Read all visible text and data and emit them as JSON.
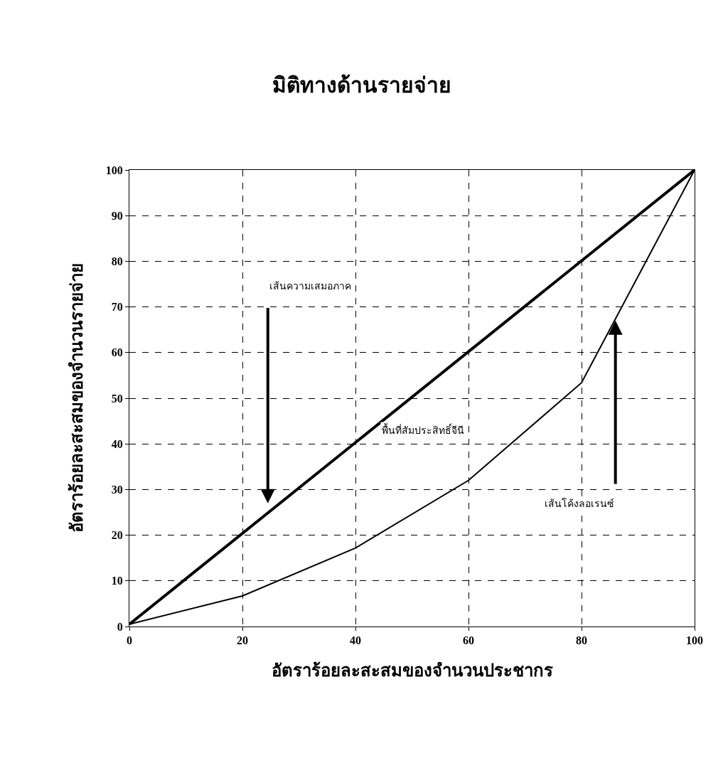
{
  "chart_data": {
    "type": "line",
    "title": "มิติทางด้านรายจ่าย",
    "xlabel": "อัตราร้อยละสะสมของจำนวนประชากร",
    "ylabel": "อัตราร้อยละสะสมของจำนวนรายจ่าย",
    "series": [
      {
        "color": "#000000",
        "x": [
          0,
          100
        ],
        "values": [
          0.5,
          100
        ]
      },
      {
        "color": "#000000",
        "x": [
          0,
          20,
          40,
          60,
          80,
          100
        ],
        "values": [
          0.5,
          6.7,
          17.2,
          32,
          53.4,
          100
        ]
      }
    ],
    "annotations": [
      "เส้นความเสมอภาค",
      "พื้นที่สัมประสิทธิ์จีนี",
      "เส้นโค้งลอเรนซ์"
    ],
    "xlim": [
      0,
      100
    ],
    "xticks": [
      0,
      20,
      40,
      60,
      80,
      100
    ],
    "ylim": [
      0,
      100
    ],
    "yticks": [
      0,
      10,
      20,
      30,
      40,
      50,
      60,
      70,
      80,
      90,
      100
    ],
    "grid": true,
    "marker": "none",
    "line_style": "solid"
  }
}
